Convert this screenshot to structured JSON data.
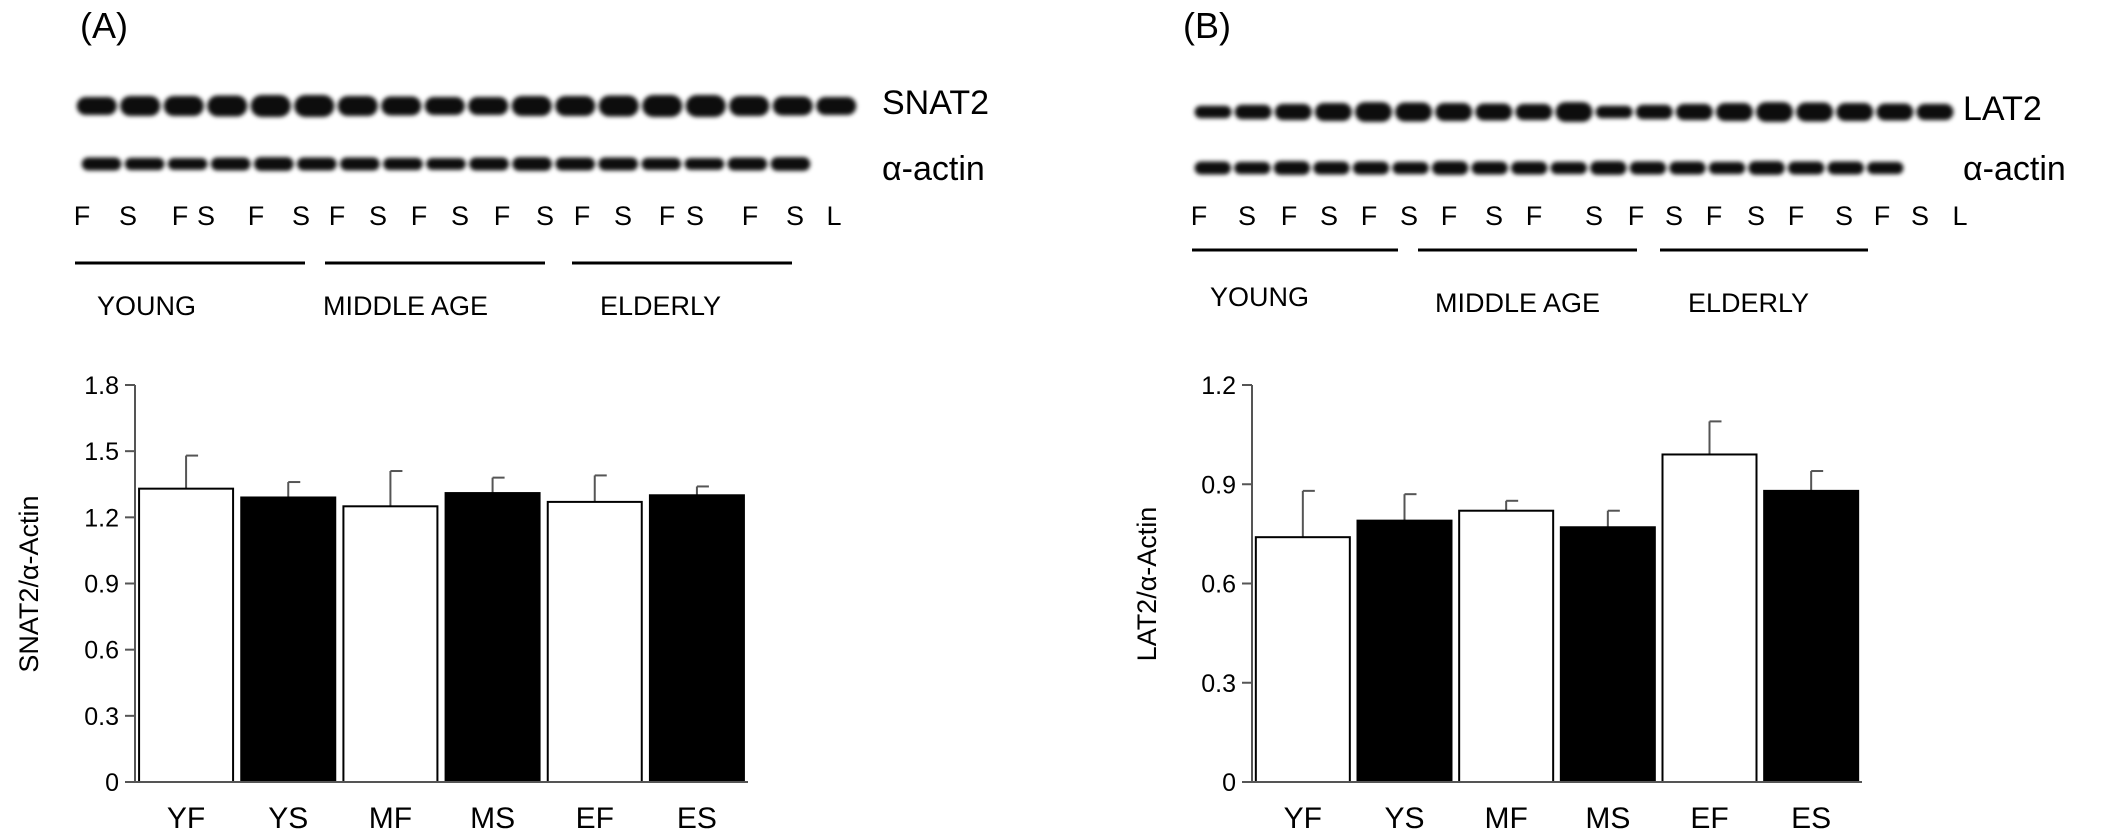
{
  "panels": [
    {
      "panel_label": "(A)",
      "blot": {
        "band_labels": [
          "SNAT2",
          "α-actin"
        ],
        "lane_labels": [
          "F",
          "S",
          "F",
          "S",
          "F",
          "S",
          "F",
          "S",
          "F",
          "S",
          "F",
          "S",
          "F",
          "S",
          "F",
          "S",
          "F",
          "S",
          "L"
        ],
        "group_labels": [
          "YOUNG",
          "MIDDLE AGE",
          "ELDERLY"
        ]
      }
    },
    {
      "panel_label": "(B)",
      "blot": {
        "band_labels": [
          "LAT2",
          "α-actin"
        ],
        "lane_labels": [
          "F",
          "S",
          "F",
          "S",
          "F",
          "S",
          "F",
          "S",
          "F",
          "S",
          "F",
          "S",
          "F",
          "S",
          "F",
          "S",
          "F",
          "S",
          "L"
        ],
        "group_labels": [
          "YOUNG",
          "MIDDLE AGE",
          "ELDERLY"
        ]
      }
    }
  ],
  "chart_data": [
    {
      "type": "bar",
      "title": "",
      "xlabel": "",
      "ylabel": "SNAT2/α-Actin",
      "categories": [
        "YF",
        "YS",
        "MF",
        "MS",
        "EF",
        "ES"
      ],
      "values": [
        1.33,
        1.29,
        1.25,
        1.31,
        1.27,
        1.3
      ],
      "errors": [
        0.15,
        0.07,
        0.16,
        0.07,
        0.12,
        0.04
      ],
      "bar_fill": [
        "white",
        "black",
        "white",
        "black",
        "white",
        "black"
      ],
      "ylim": [
        0,
        1.8
      ],
      "yticks": [
        "0",
        "0.3",
        "0.6",
        "0.9",
        "1.2",
        "1.5",
        "1.8"
      ],
      "grid": false,
      "legend": "none"
    },
    {
      "type": "bar",
      "title": "",
      "xlabel": "",
      "ylabel": "LAT2/α-Actin",
      "categories": [
        "YF",
        "YS",
        "MF",
        "MS",
        "EF",
        "ES"
      ],
      "values": [
        0.74,
        0.79,
        0.82,
        0.77,
        0.99,
        0.88
      ],
      "errors": [
        0.14,
        0.08,
        0.03,
        0.05,
        0.1,
        0.06
      ],
      "bar_fill": [
        "white",
        "black",
        "white",
        "black",
        "white",
        "black"
      ],
      "ylim": [
        0,
        1.2
      ],
      "yticks": [
        "0",
        "0.3",
        "0.6",
        "0.9",
        "1.2"
      ],
      "grid": false,
      "legend": "none"
    }
  ]
}
